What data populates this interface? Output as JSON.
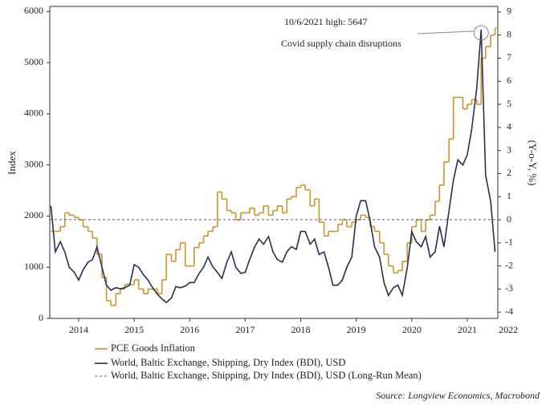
{
  "chart_data": {
    "type": "line",
    "ylabel": "Index",
    "y2label": "(Y-o-Y, %)",
    "source": "Source: Longview Economics, Macrobond",
    "legend": "bottom-left",
    "xlim": [
      2013.98,
      2022.05
    ],
    "xticks": [
      {
        "value": 2014.5,
        "label": "2014"
      },
      {
        "value": 2015.5,
        "label": "2015"
      },
      {
        "value": 2016.5,
        "label": "2016"
      },
      {
        "value": 2017.5,
        "label": "2017"
      },
      {
        "value": 2018.5,
        "label": "2018"
      },
      {
        "value": 2019.5,
        "label": "2019"
      },
      {
        "value": 2020.5,
        "label": "2020"
      },
      {
        "value": 2021.5,
        "label": "2021"
      },
      {
        "value": 2022.24,
        "label": "2022"
      }
    ],
    "ylim": [
      0,
      6100
    ],
    "yticks": [
      0,
      1000,
      2000,
      3000,
      4000,
      5000,
      6000
    ],
    "y2lim": [
      -4.27,
      9.24
    ],
    "y2ticks": [
      -4,
      -3,
      -2,
      -1,
      0,
      1,
      2,
      3,
      4,
      5,
      6,
      7,
      8,
      9
    ],
    "x": [
      2014.0,
      2014.08,
      2014.17,
      2014.25,
      2014.33,
      2014.42,
      2014.5,
      2014.58,
      2014.67,
      2014.75,
      2014.83,
      2014.92,
      2015.0,
      2015.08,
      2015.17,
      2015.25,
      2015.33,
      2015.42,
      2015.5,
      2015.58,
      2015.67,
      2015.75,
      2015.83,
      2015.92,
      2016.0,
      2016.08,
      2016.17,
      2016.25,
      2016.33,
      2016.42,
      2016.5,
      2016.58,
      2016.67,
      2016.75,
      2016.83,
      2016.92,
      2017.0,
      2017.08,
      2017.17,
      2017.25,
      2017.33,
      2017.42,
      2017.5,
      2017.58,
      2017.67,
      2017.75,
      2017.83,
      2017.92,
      2018.0,
      2018.08,
      2018.17,
      2018.25,
      2018.33,
      2018.42,
      2018.5,
      2018.58,
      2018.67,
      2018.75,
      2018.83,
      2018.92,
      2019.0,
      2019.08,
      2019.17,
      2019.25,
      2019.33,
      2019.42,
      2019.5,
      2019.58,
      2019.67,
      2019.75,
      2019.83,
      2019.92,
      2020.0,
      2020.08,
      2020.17,
      2020.25,
      2020.33,
      2020.42,
      2020.5,
      2020.58,
      2020.67,
      2020.75,
      2020.83,
      2020.92,
      2021.0,
      2021.08,
      2021.17,
      2021.25,
      2021.33,
      2021.42,
      2021.5,
      2021.58,
      2021.67,
      2021.75,
      2021.83,
      2021.92,
      2022.0
    ],
    "series": [
      {
        "name": "PCE Goods Inflation",
        "color": "#c9962c",
        "axis": "y2",
        "style": "step",
        "values": [
          -0.5,
          -0.5,
          -0.3,
          0.3,
          0.2,
          0.1,
          0.0,
          -0.3,
          -0.5,
          -0.8,
          -1.5,
          -2.5,
          -3.5,
          -3.7,
          -3.2,
          -3.0,
          -2.8,
          -2.8,
          -2.6,
          -3.0,
          -3.2,
          -3.0,
          -3.0,
          -3.2,
          -2.6,
          -1.5,
          -1.8,
          -1.3,
          -1.0,
          -2.0,
          -2.0,
          -1.2,
          -1.0,
          -0.7,
          -0.5,
          -0.3,
          1.2,
          0.9,
          0.4,
          0.3,
          0.0,
          0.3,
          0.3,
          0.5,
          0.2,
          0.3,
          0.6,
          0.2,
          0.4,
          0.6,
          0.3,
          0.9,
          1.0,
          1.4,
          1.5,
          1.3,
          0.6,
          0.9,
          -0.1,
          -0.7,
          -0.5,
          -0.5,
          -0.2,
          0.0,
          -0.3,
          -0.1,
          0.0,
          0.2,
          0.1,
          -0.3,
          -0.5,
          -1.0,
          -1.5,
          -2.0,
          -2.3,
          -2.2,
          -1.8,
          -1.0,
          -0.3,
          0.0,
          -0.5,
          0.0,
          0.2,
          0.8,
          1.5,
          2.5,
          3.5,
          5.3,
          5.3,
          4.8,
          5.0,
          5.2,
          5.0,
          7.0,
          7.5,
          8.0,
          8.3
        ]
      },
      {
        "name": "World, Baltic Exchange, Shipping, Dry Index (BDI), USD",
        "color": "#2b2d4f",
        "style": "solid",
        "values": [
          2200,
          1300,
          1500,
          1300,
          1000,
          900,
          750,
          950,
          1100,
          1150,
          1400,
          1000,
          650,
          550,
          600,
          580,
          600,
          650,
          1050,
          1000,
          850,
          750,
          600,
          470,
          380,
          310,
          400,
          620,
          600,
          630,
          700,
          700,
          880,
          1000,
          1200,
          1000,
          900,
          780,
          1100,
          1300,
          1000,
          880,
          900,
          1150,
          1400,
          1550,
          1450,
          1600,
          1300,
          1150,
          1100,
          1300,
          1400,
          1350,
          1700,
          1700,
          1450,
          1550,
          1250,
          1300,
          1000,
          650,
          650,
          750,
          1000,
          1200,
          2000,
          2300,
          2300,
          1900,
          1400,
          1200,
          700,
          450,
          600,
          650,
          450,
          1000,
          1700,
          1500,
          1400,
          1600,
          1200,
          1300,
          1800,
          1400,
          2100,
          2700,
          3100,
          3000,
          3200,
          3700,
          4500,
          5647,
          2800,
          2300,
          1300
        ]
      },
      {
        "name": "World, Baltic Exchange, Shipping, Dry Index (BDI), USD (Long-Run Mean)",
        "color": "#555a7a",
        "style": "dashed",
        "value": 1930
      }
    ],
    "annotations": [
      {
        "text": "10/6/2021 high:  5647",
        "x": 2021.75,
        "y": 5647
      },
      {
        "text": "Covid supply chain disruptions"
      }
    ]
  }
}
